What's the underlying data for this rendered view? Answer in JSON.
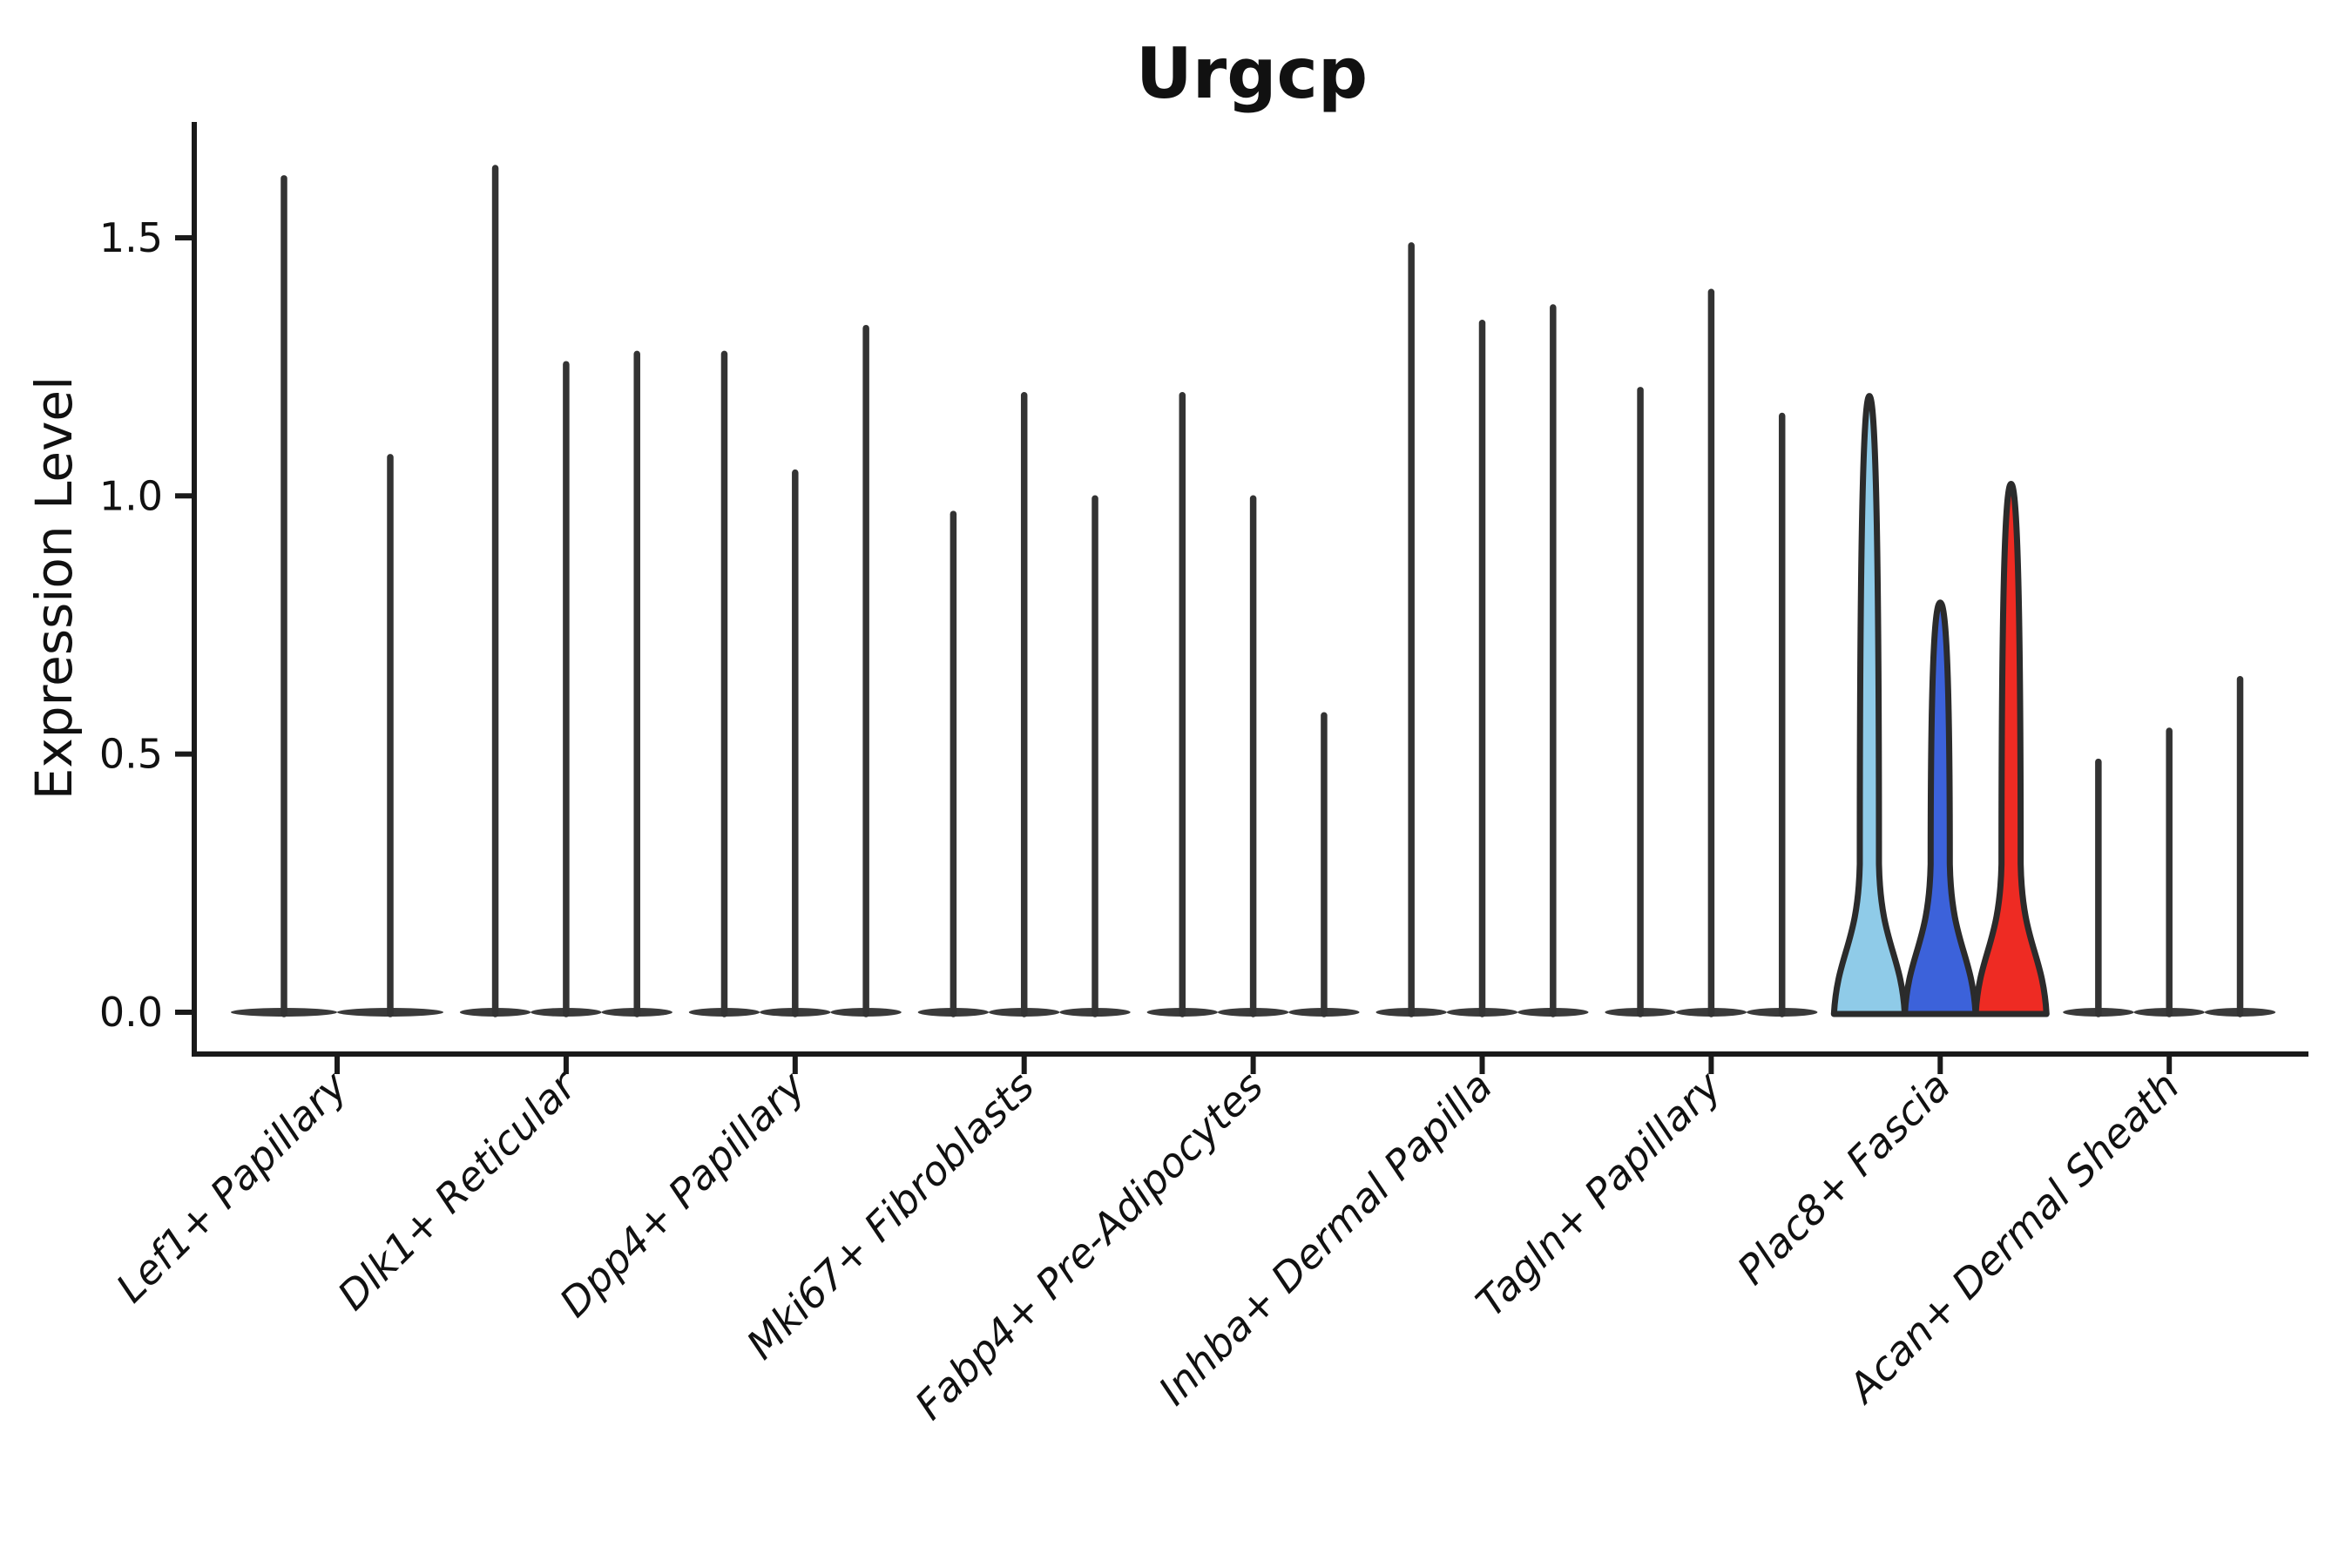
{
  "chart_data": {
    "type": "violin",
    "title": "Urgcp",
    "ylabel": "Expression Level",
    "xlabel": "",
    "ytick_labels": [
      "0.0",
      "0.5",
      "1.0",
      "1.5"
    ],
    "ytick_values": [
      0.0,
      0.5,
      1.0,
      1.5
    ],
    "ylim": [
      0.0,
      1.72
    ],
    "grid": false,
    "legend_position": "none",
    "categories": [
      "Lef1+ Papillary",
      "Dlk1+ Reticular",
      "Dpp4+ Papillary",
      "Mki67+ Fibroblasts",
      "Fabp4+ Pre-Adipocytes",
      "Inhba+ Dermal Papilla",
      "Tagln+ Papillary",
      "Plac8+ Fascia",
      "Acan+ Dermal Sheath"
    ],
    "groups": [
      {
        "category": "Lef1+ Papillary",
        "violins": [
          {
            "max": 1.62,
            "shape": "spike"
          },
          {
            "max": 1.08,
            "shape": "spike"
          }
        ]
      },
      {
        "category": "Dlk1+ Reticular",
        "violins": [
          {
            "max": 1.64,
            "shape": "spike"
          },
          {
            "max": 1.26,
            "shape": "spike"
          },
          {
            "max": 1.28,
            "shape": "spike"
          }
        ]
      },
      {
        "category": "Dpp4+ Papillary",
        "violins": [
          {
            "max": 1.28,
            "shape": "spike"
          },
          {
            "max": 1.05,
            "shape": "spike"
          },
          {
            "max": 1.33,
            "shape": "spike"
          }
        ]
      },
      {
        "category": "Mki67+ Fibroblasts",
        "violins": [
          {
            "max": 0.97,
            "shape": "spike"
          },
          {
            "max": 1.2,
            "shape": "spike"
          },
          {
            "max": 1.0,
            "shape": "spike"
          }
        ]
      },
      {
        "category": "Fabp4+ Pre-Adipocytes",
        "violins": [
          {
            "max": 1.2,
            "shape": "spike"
          },
          {
            "max": 1.0,
            "shape": "spike"
          },
          {
            "max": 0.58,
            "shape": "spike"
          }
        ]
      },
      {
        "category": "Inhba+ Dermal Papilla",
        "violins": [
          {
            "max": 1.49,
            "shape": "spike"
          },
          {
            "max": 1.34,
            "shape": "spike"
          },
          {
            "max": 1.37,
            "shape": "spike"
          }
        ]
      },
      {
        "category": "Tagln+ Papillary",
        "violins": [
          {
            "max": 1.21,
            "shape": "spike"
          },
          {
            "max": 1.4,
            "shape": "spike"
          },
          {
            "max": 1.16,
            "shape": "spike"
          }
        ]
      },
      {
        "category": "Plac8+ Fascia",
        "violins": [
          {
            "max": 1.19,
            "shape": "bell",
            "fill": "#8FCBE8"
          },
          {
            "max": 0.79,
            "shape": "bell",
            "fill": "#3C62DA"
          },
          {
            "max": 1.02,
            "shape": "bell",
            "fill": "#EE2B23"
          }
        ]
      },
      {
        "category": "Acan+ Dermal Sheath",
        "violins": [
          {
            "max": 0.49,
            "shape": "spike"
          },
          {
            "max": 0.55,
            "shape": "spike"
          },
          {
            "max": 0.65,
            "shape": "spike"
          }
        ]
      }
    ],
    "colors": {
      "default_violin": "#3a3a3a",
      "spike": "#333333",
      "outline": "#2b2b2b",
      "highlight_light_blue": "#8FCBE8",
      "highlight_blue": "#3C62DA",
      "highlight_red": "#EE2B23",
      "axis": "#1a1a1a",
      "text": "#111111"
    }
  }
}
